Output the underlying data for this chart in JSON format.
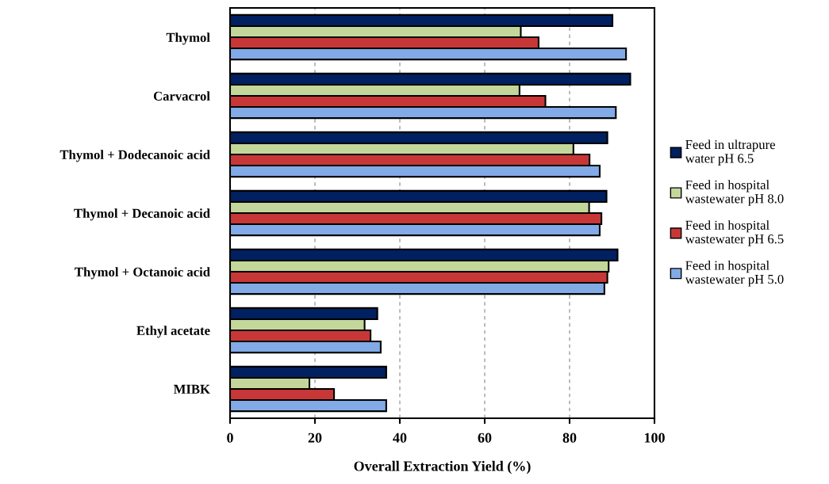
{
  "chart_data": {
    "type": "bar",
    "orientation": "horizontal",
    "xlabel": "Overall Extraction Yield (%)",
    "categories": [
      "Thymol",
      "Carvacrol",
      "Thymol + Dodecanoic acid",
      "Thymol + Decanoic acid",
      "Thymol + Octanoic acid",
      "Ethyl acetate",
      "MIBK"
    ],
    "series": [
      {
        "name": "Feed in ultrapure\nwater pH 6.5",
        "color": "#002060",
        "values": [
          90.1,
          94.3,
          88.9,
          88.7,
          91.3,
          34.7,
          36.8
        ]
      },
      {
        "name": "Feed in hospital\nwastewater pH 8.0",
        "color": "#c4d79b",
        "values": [
          68.5,
          68.2,
          80.9,
          84.6,
          89.2,
          31.7,
          18.7
        ]
      },
      {
        "name": "Feed in hospital\nwastewater pH 6.5",
        "color": "#c83737",
        "values": [
          72.7,
          74.3,
          84.7,
          87.5,
          88.9,
          33.1,
          24.5
        ]
      },
      {
        "name": "Feed in hospital\nwastewater pH 5.0",
        "color": "#82aae6",
        "values": [
          93.3,
          90.9,
          87.1,
          87.1,
          88.2,
          35.5,
          36.8
        ]
      }
    ],
    "xlim": [
      0,
      100
    ],
    "xticks": [
      0,
      20,
      40,
      60,
      80,
      100
    ],
    "grid": "x",
    "legend": "right"
  }
}
